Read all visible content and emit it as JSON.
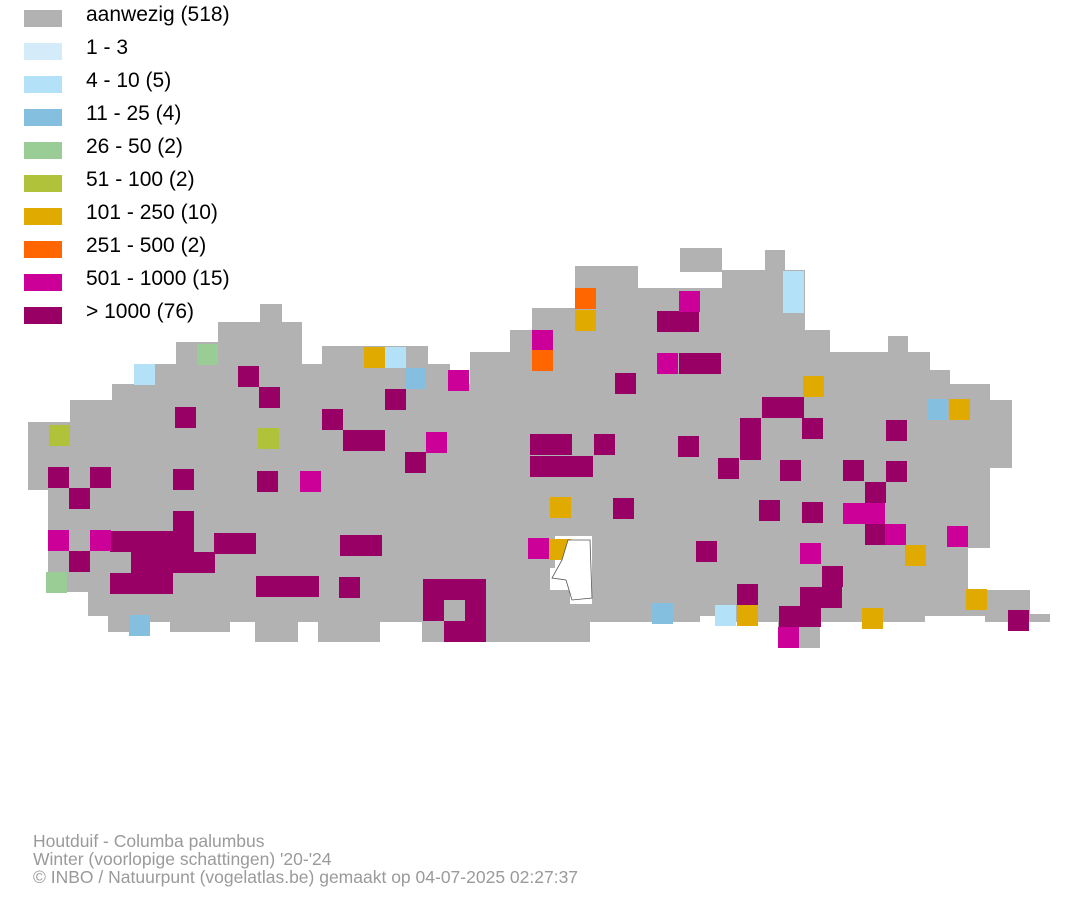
{
  "legend": {
    "items": [
      {
        "label": "aanwezig (518)",
        "color": "#b2b2b2"
      },
      {
        "label": "1 - 3",
        "color": "#d4ebf9"
      },
      {
        "label": "4 - 10 (5)",
        "color": "#b3e1f7"
      },
      {
        "label": "11 - 25 (4)",
        "color": "#85bfdf"
      },
      {
        "label": "26 - 50 (2)",
        "color": "#9acd95"
      },
      {
        "label": "51 - 100 (2)",
        "color": "#b0c23a"
      },
      {
        "label": "101 - 250 (10)",
        "color": "#e0aa00"
      },
      {
        "label": "251 - 500 (2)",
        "color": "#ff6600"
      },
      {
        "label": "501 - 1000 (15)",
        "color": "#cc0099"
      },
      {
        "label": "> 1000 (76)",
        "color": "#990066"
      }
    ]
  },
  "footer": {
    "species": "Houtduif - Columba palumbus",
    "period": "Winter (voorlopige schattingen) '20-'24",
    "credit": "© INBO / Natuurpunt (vogelatlas.be) gemaakt op 04-07-2025 02:27:37"
  }
}
